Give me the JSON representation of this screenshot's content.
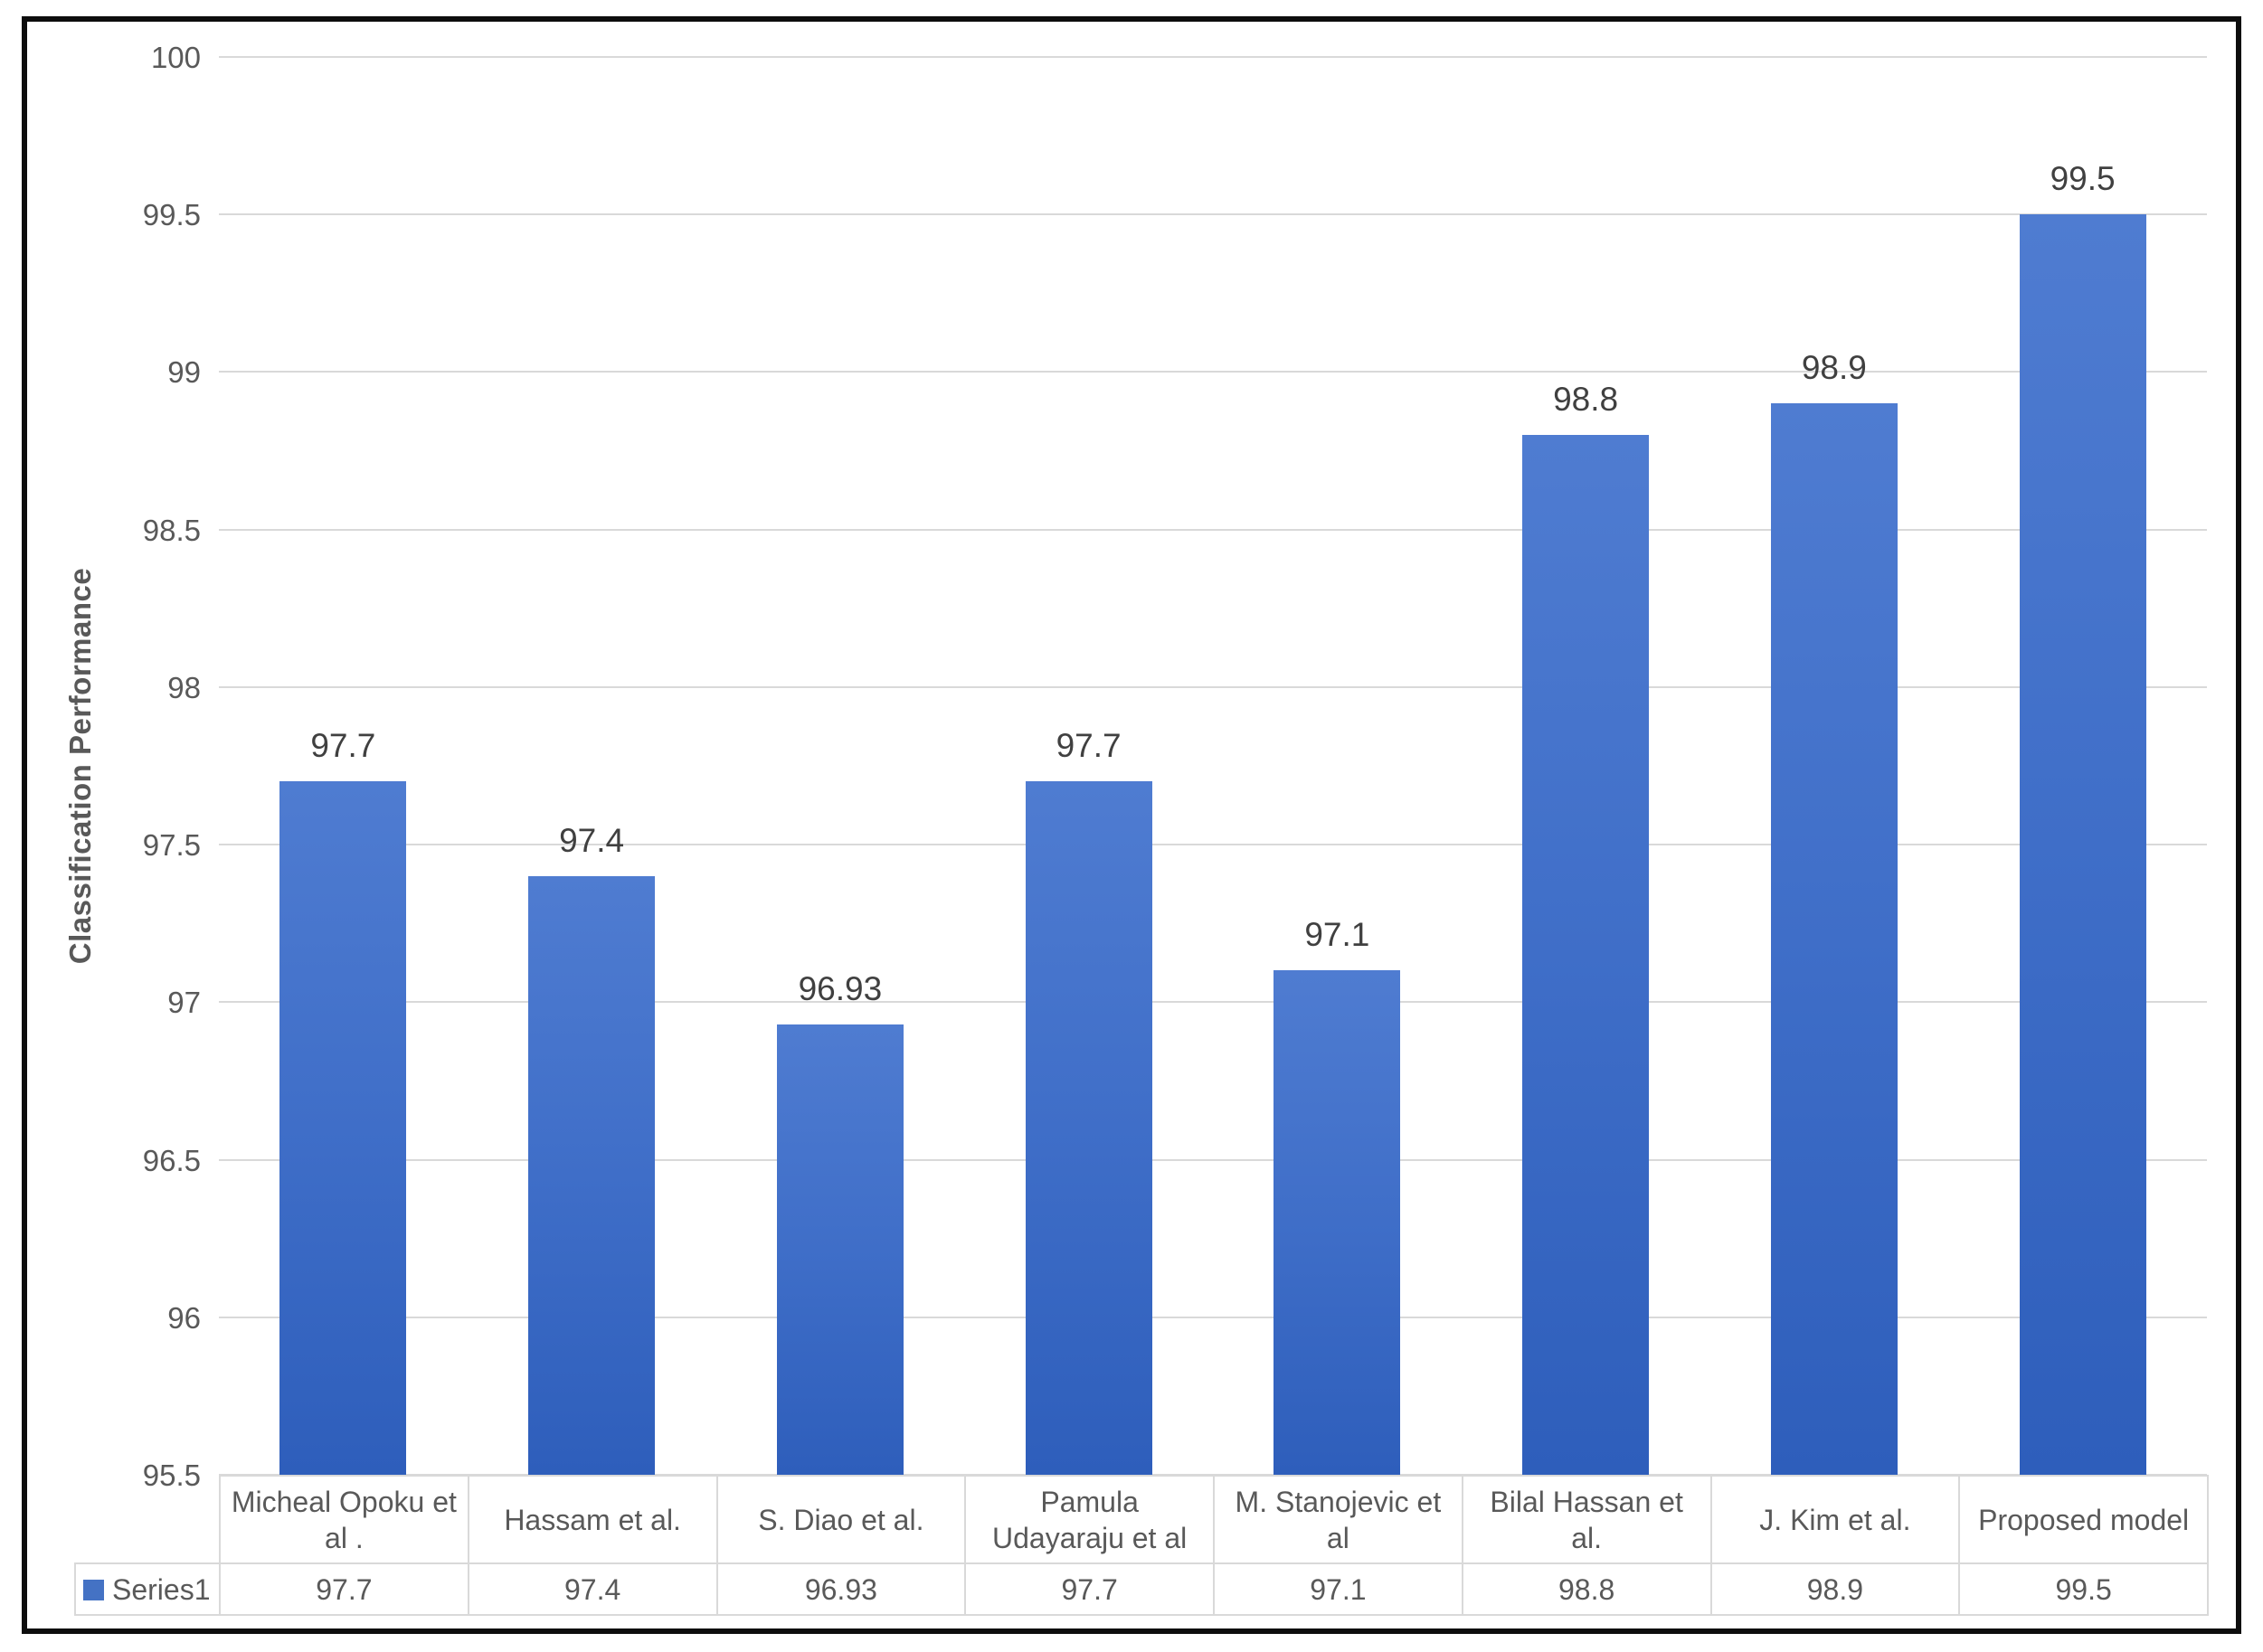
{
  "chart_data": {
    "type": "bar",
    "title": "",
    "categories": [
      "Micheal Opoku et al .",
      "Hassam et al.",
      "S. Diao et al.",
      "Pamula Udayaraju et al",
      "M. Stanojevic et al",
      "Bilal Hassan et al.",
      "J. Kim et al.",
      "Proposed model"
    ],
    "series": [
      {
        "name": "Series1",
        "values": [
          97.7,
          97.4,
          96.93,
          97.7,
          97.1,
          98.8,
          98.9,
          99.5
        ]
      }
    ],
    "value_labels": [
      "97.7",
      "97.4",
      "96.93",
      "97.7",
      "97.1",
      "98.8",
      "98.9",
      "99.5"
    ],
    "xlabel": "",
    "ylabel": "Classification Performance",
    "ylim": [
      95.5,
      100
    ],
    "ytick_step": 0.5,
    "ytick_labels": [
      "100",
      "99.5",
      "99",
      "98.5",
      "98",
      "97.5",
      "97",
      "96.5",
      "96",
      "95.5"
    ],
    "grid": true,
    "legend_position": "bottom-data-table",
    "colors": {
      "bar_gradient_top": "#4F7CD1",
      "bar_gradient_bottom": "#2E5EBB",
      "legend_marker": "#4472C4",
      "gridline": "#D9D9D9",
      "axis_text": "#595959",
      "data_label_text": "#404040",
      "table_border": "#D9D9D9",
      "frame_border": "#0D0D0D"
    }
  }
}
